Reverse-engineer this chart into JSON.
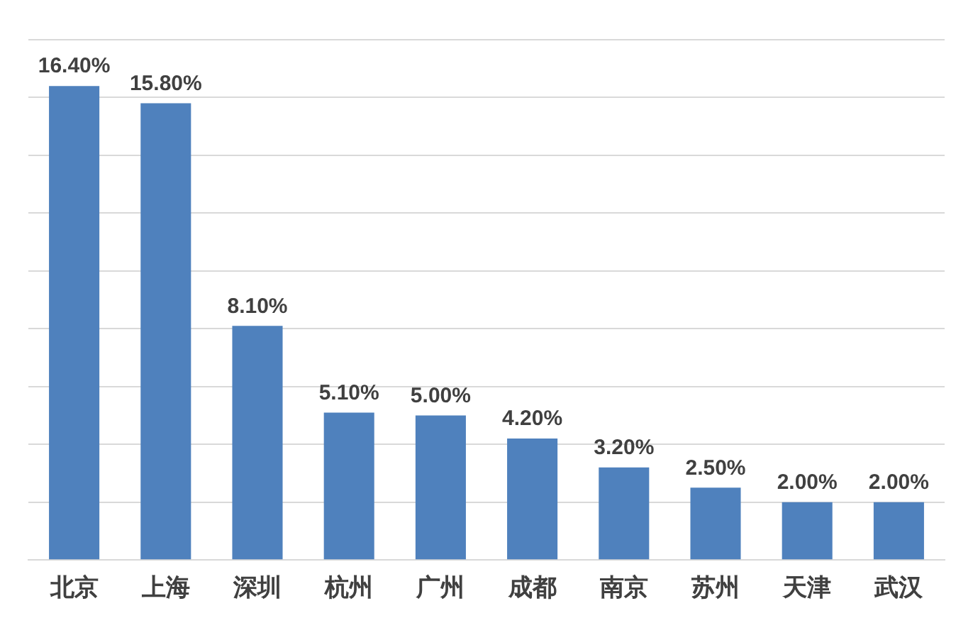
{
  "chart_data": {
    "type": "bar",
    "categories": [
      "北京",
      "上海",
      "深圳",
      "杭州",
      "广州",
      "成都",
      "南京",
      "苏州",
      "天津",
      "武汉"
    ],
    "values": [
      16.4,
      15.8,
      8.1,
      5.1,
      5.0,
      4.2,
      3.2,
      2.5,
      2.0,
      2.0
    ],
    "value_labels": [
      "16.40%",
      "15.80%",
      "8.10%",
      "5.10%",
      "5.00%",
      "4.20%",
      "3.20%",
      "2.50%",
      "2.00%",
      "2.00%"
    ],
    "color": "#4f81bd",
    "ylim": [
      0,
      18
    ],
    "yticks": [
      {
        "value": 0,
        "label": null
      },
      {
        "value": 2,
        "label": null
      },
      {
        "value": 4,
        "label": null
      },
      {
        "value": 6,
        "label": null
      },
      {
        "value": 8,
        "label": null
      },
      {
        "value": 10,
        "label": null
      },
      {
        "value": 12,
        "label": null
      },
      {
        "value": 14,
        "label": null
      },
      {
        "value": 16,
        "label": null
      },
      {
        "value": 18,
        "label": null
      }
    ],
    "tick_labels": "x",
    "grid": "y"
  }
}
